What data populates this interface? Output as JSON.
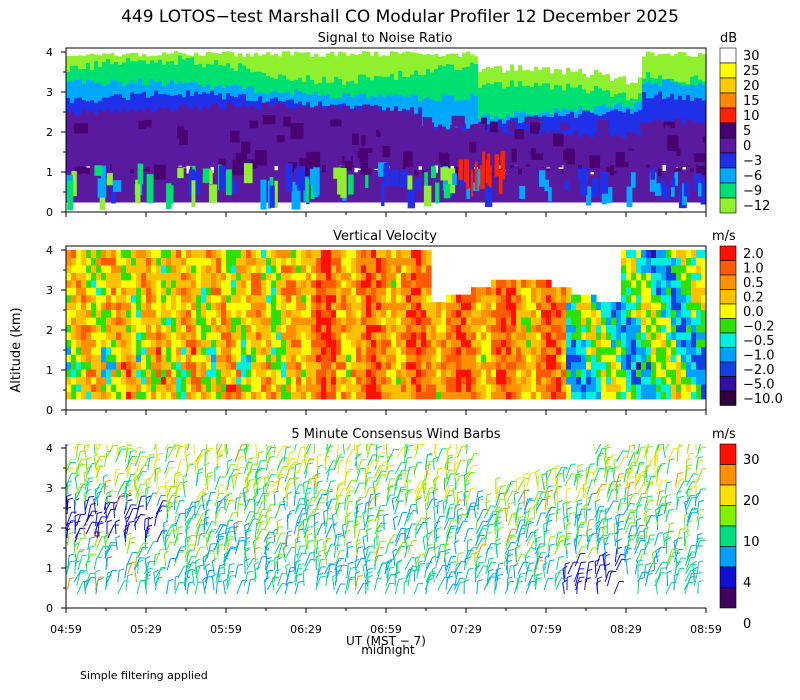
{
  "title": "449 LOTOS−test Marshall CO Modular Profiler 12 December 2025",
  "ylabel": "Altitude (km)",
  "xlabel": "UT (MST − 7)",
  "midnight_label": "midnight",
  "footnote": "Simple filtering applied",
  "x_ticks": [
    "04:59",
    "05:29",
    "05:59",
    "06:29",
    "06:59",
    "07:29",
    "07:59",
    "08:29",
    "08:59"
  ],
  "chart_data": [
    {
      "type": "heatmap",
      "title": "Signal to Noise Ratio",
      "y_ticks": [
        0,
        1,
        2,
        3,
        4
      ],
      "ylim": [
        0,
        4.1
      ],
      "colorbar": {
        "unit": "dB",
        "labels": [
          "30",
          "25",
          "20",
          "15",
          "10",
          "5",
          "0",
          "−3",
          "−6",
          "−9",
          "−12"
        ],
        "colors": [
          "#ffffff",
          "#ffff00",
          "#ffcc00",
          "#ff8800",
          "#ff2200",
          "#4a0070",
          "#5a1aa0",
          "#2030e8",
          "#00a8ff",
          "#00e070",
          "#90f030"
        ]
      }
    },
    {
      "type": "heatmap",
      "title": "Vertical Velocity",
      "y_ticks": [
        0,
        1,
        2,
        3,
        4
      ],
      "ylim": [
        0,
        4.1
      ],
      "colorbar": {
        "unit": "m/s",
        "labels": [
          "2.0",
          "1.0",
          "0.5",
          "0.2",
          "0.0",
          "−0.2",
          "−0.5",
          "−1.0",
          "−2.0",
          "−5.0",
          "−10.0"
        ],
        "colors": [
          "#ff1000",
          "#ff5a00",
          "#ff9000",
          "#ffc000",
          "#ffff00",
          "#30e000",
          "#00f0e0",
          "#00a0ff",
          "#1040e0",
          "#3010a0",
          "#300040"
        ]
      }
    },
    {
      "type": "scatter",
      "title": "5 Minute Consensus Wind Barbs",
      "y_ticks": [
        0,
        1,
        2,
        3,
        4
      ],
      "ylim": [
        0,
        4.1
      ],
      "colorbar": {
        "unit": "m/s",
        "labels": [
          "30",
          "20",
          "10",
          "4",
          "0"
        ],
        "colors": [
          "#ff1000",
          "#ff9000",
          "#ffe000",
          "#80f000",
          "#00e080",
          "#00a0ff",
          "#1010d0",
          "#400060"
        ]
      }
    }
  ]
}
